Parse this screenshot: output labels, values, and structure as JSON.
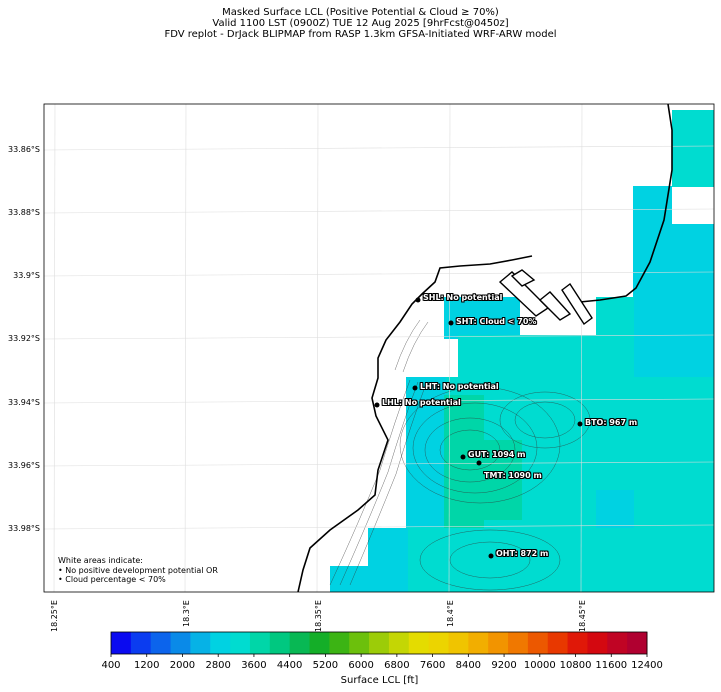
{
  "header": {
    "title_line1": "Masked Surface LCL (Positive Potential & Cloud ≥ 70%)",
    "title_line2": "Valid 1100 LST (0900Z) TUE 12 Aug 2025 [9hrFcst@0450z]",
    "title_line3": "FDV replot - DrJack BLIPMAP from RASP 1.3km GFSA-Initiated WRF-ARW model"
  },
  "axes": {
    "y_ticks": [
      "33.86°S",
      "33.88°S",
      "33.9°S",
      "33.92°S",
      "33.94°S",
      "33.96°S",
      "33.98°S"
    ],
    "x_ticks": [
      "18.25°E",
      "18.3°E",
      "18.35°E",
      "18.4°E",
      "18.45°E"
    ]
  },
  "stations": [
    {
      "code": "SHL",
      "label": "SHL: No potential"
    },
    {
      "code": "SHT",
      "label": "SHT: Cloud < 70%"
    },
    {
      "code": "LHT",
      "label": "LHT: No potential"
    },
    {
      "code": "LHL",
      "label": "LHL: No potential"
    },
    {
      "code": "BTO",
      "label": "BTO: 967 m"
    },
    {
      "code": "GUT",
      "label": "GUT: 1094 m"
    },
    {
      "code": "TMT",
      "label": "TMT: 1090 m"
    },
    {
      "code": "OHT",
      "label": "OHT: 872 m"
    }
  ],
  "legend_note": {
    "line1": "White areas indicate:",
    "line2": "• No positive development potential OR",
    "line3": "• Cloud percentage < 70%"
  },
  "colorbar": {
    "label": "Surface LCL [ft]",
    "ticks": [
      "400",
      "1200",
      "2000",
      "2800",
      "3600",
      "4400",
      "5200",
      "6000",
      "6800",
      "7600",
      "8400",
      "9200",
      "10000",
      "10800",
      "11600",
      "12400"
    ],
    "colors": [
      "#0a0af0",
      "#0b3cf0",
      "#0c64ec",
      "#0a8ae8",
      "#06b2e6",
      "#00d2e2",
      "#00dcd0",
      "#00d6a8",
      "#00c880",
      "#08b854",
      "#14ae28",
      "#3cb414",
      "#6cc00c",
      "#9ccc08",
      "#c4d604",
      "#e4dc00",
      "#ecd400",
      "#f0c400",
      "#f2ae00",
      "#f29400",
      "#f07800",
      "#ec5800",
      "#e83800",
      "#e01808",
      "#d40810",
      "#c00424",
      "#b00030"
    ]
  }
}
